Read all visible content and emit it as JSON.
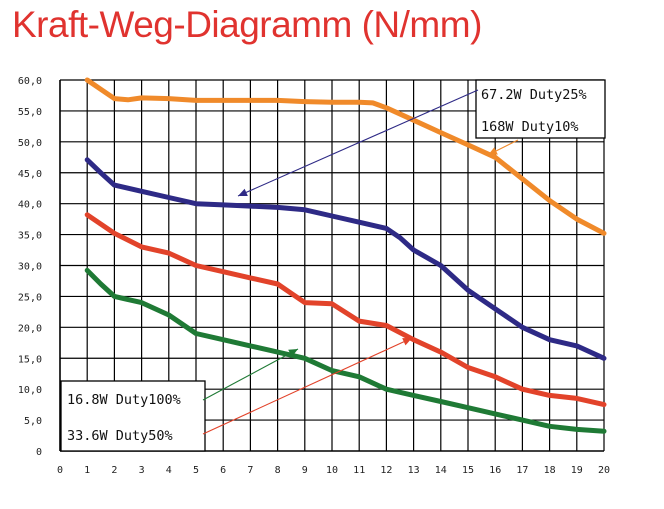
{
  "title": "Kraft-Weg-Diagramm (N/mm)",
  "colors": {
    "title": "#e0332f",
    "orange": "#f08a2a",
    "blue": "#2e2a86",
    "red": "#e2432a",
    "green": "#1f7a35"
  },
  "chart_data": {
    "type": "line",
    "title": "Kraft-Weg-Diagramm (N/mm)",
    "xlim": [
      0,
      20
    ],
    "ylim": [
      0,
      60
    ],
    "x_ticks": [
      "0",
      "1",
      "2",
      "3",
      "4",
      "5",
      "6",
      "7",
      "8",
      "9",
      "10",
      "11",
      "12",
      "13",
      "14",
      "15",
      "16",
      "17",
      "18",
      "19",
      "20"
    ],
    "y_ticks": [
      "0",
      "5,0",
      "10,0",
      "15,0",
      "20,0",
      "25,0",
      "30,0",
      "35,0",
      "40,0",
      "45,0",
      "50,0",
      "55,0",
      "60,0"
    ],
    "grid": true,
    "series": [
      {
        "name": "168W  Duty10%",
        "color": "#f08a2a",
        "x": [
          1,
          1.5,
          2,
          2.5,
          3,
          4,
          5,
          6,
          7,
          8,
          9,
          10,
          11,
          11.5,
          12,
          13,
          14,
          15,
          16,
          17,
          18,
          19,
          20
        ],
        "y": [
          60,
          58.5,
          57,
          56.8,
          57.1,
          57,
          56.7,
          56.7,
          56.7,
          56.7,
          56.5,
          56.4,
          56.4,
          56.3,
          55.5,
          53.5,
          51.5,
          49.5,
          47.5,
          44,
          40.5,
          37.5,
          35.2
        ]
      },
      {
        "name": "67.2W Duty25%",
        "color": "#2e2a86",
        "x": [
          1,
          1.5,
          2,
          2.5,
          3,
          4,
          5,
          6,
          7,
          8,
          9,
          10,
          11,
          12,
          12.5,
          13,
          14,
          15,
          16,
          17,
          18,
          19,
          20
        ],
        "y": [
          47.1,
          45,
          43,
          42.5,
          42,
          41,
          40,
          39.8,
          39.6,
          39.4,
          39,
          38,
          37,
          36,
          34.5,
          32.5,
          30,
          26,
          23,
          20,
          18,
          17,
          15
        ]
      },
      {
        "name": "33.6W Duty50%",
        "color": "#e2432a",
        "x": [
          1,
          2,
          3,
          4,
          5,
          6,
          7,
          8,
          8.5,
          9,
          10,
          11,
          12,
          13,
          14,
          15,
          16,
          17,
          18,
          19,
          20
        ],
        "y": [
          38.2,
          35.2,
          33,
          32,
          30,
          29,
          28,
          27,
          25.5,
          24,
          23.8,
          21,
          20.3,
          18,
          16,
          13.5,
          12,
          10,
          9,
          8.5,
          7.5
        ]
      },
      {
        "name": "16.8W Duty100%",
        "color": "#1f7a35",
        "x": [
          1,
          1.5,
          2,
          3,
          4,
          5,
          6,
          7,
          8,
          9,
          10,
          11,
          12,
          13,
          14,
          15,
          16,
          17,
          18,
          19,
          20
        ],
        "y": [
          29.2,
          27,
          25,
          24,
          22,
          19,
          18,
          17,
          16,
          15,
          13,
          12,
          10,
          9,
          8,
          7,
          6,
          5,
          4,
          3.5,
          3.2
        ]
      }
    ],
    "annotations": [
      {
        "text": "67.2W Duty25%",
        "series": "67.2W Duty25%"
      },
      {
        "text": "168W  Duty10%",
        "series": "168W  Duty10%"
      },
      {
        "text": "16.8W Duty100%",
        "series": "16.8W Duty100%"
      },
      {
        "text": "33.6W Duty50%",
        "series": "33.6W Duty50%"
      }
    ]
  }
}
